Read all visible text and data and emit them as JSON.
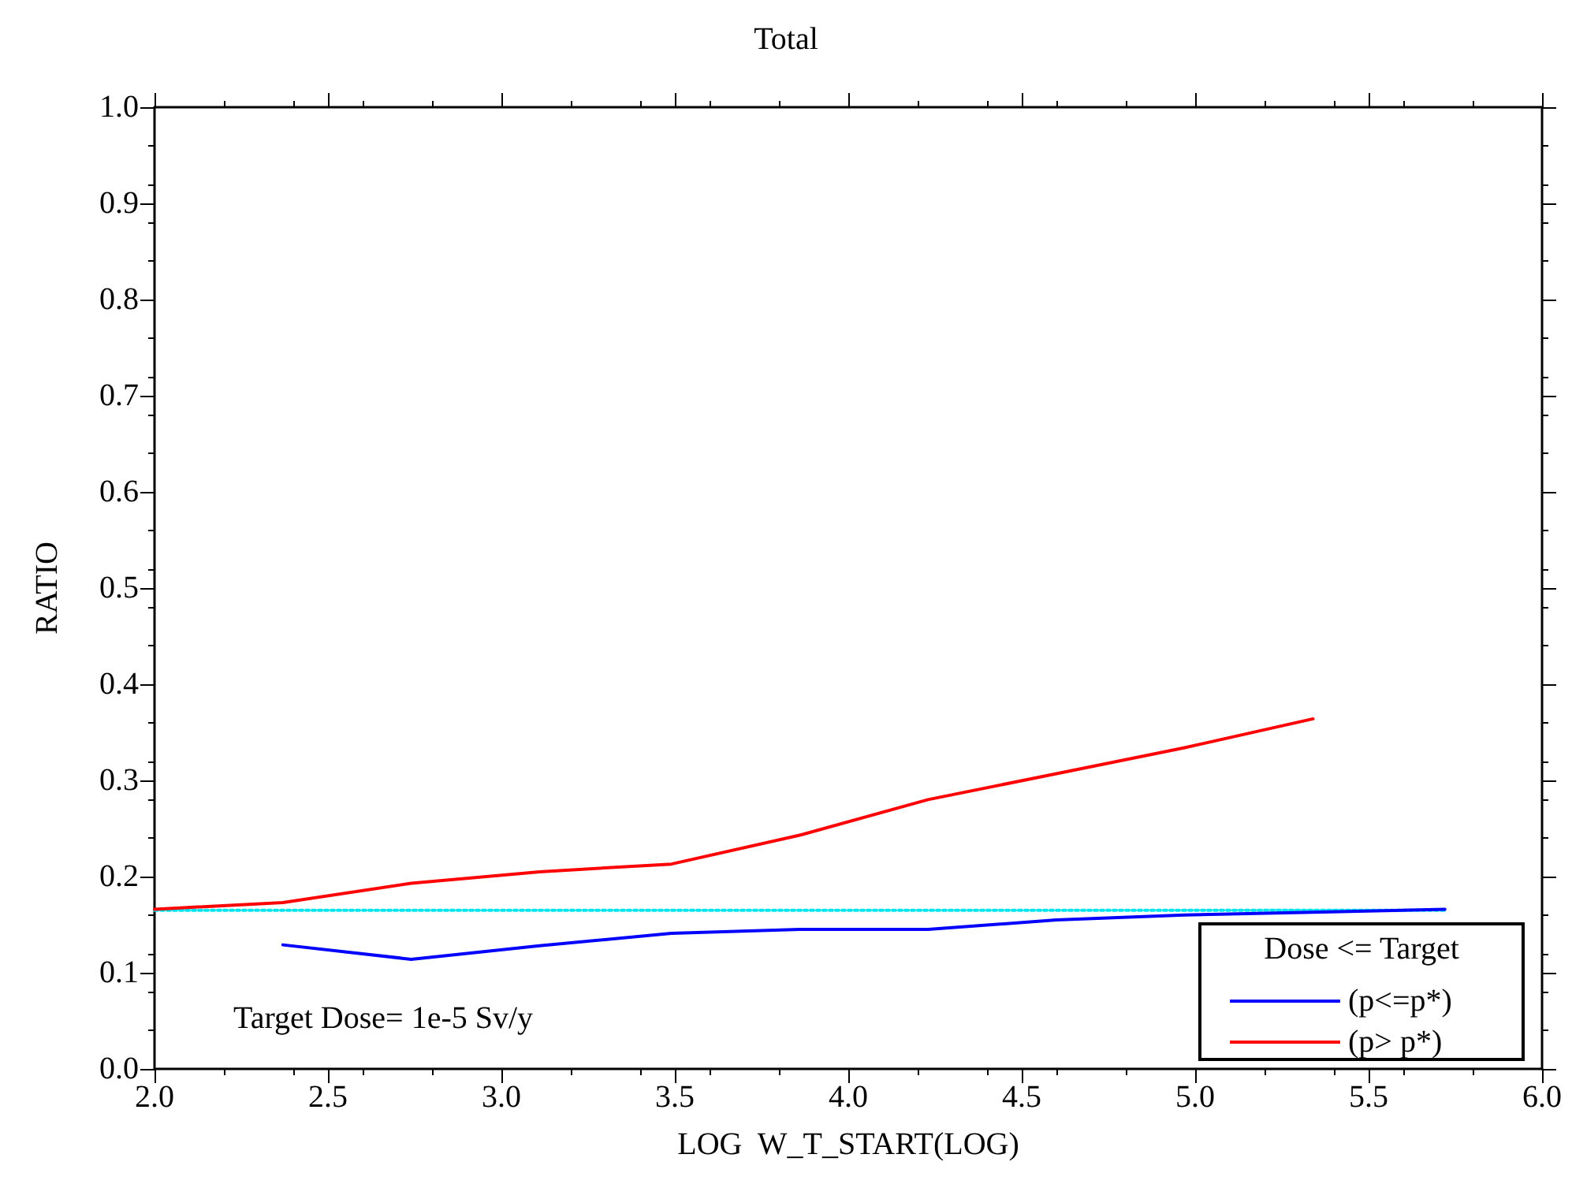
{
  "chart_data": {
    "type": "line",
    "title": "Total",
    "xlabel": "LOG  W_T_START(LOG)",
    "ylabel": "RATIO",
    "legend_title": "Dose <= Target",
    "annotations": [
      "Target Dose= 1e-5 Sv/y"
    ],
    "xlim": [
      2,
      6
    ],
    "xticks": [
      {
        "value": 2,
        "label": "2.0"
      },
      {
        "value": 2.5,
        "label": "2.5"
      },
      {
        "value": 3,
        "label": "3.0"
      },
      {
        "value": 3.5,
        "label": "3.5"
      },
      {
        "value": 4,
        "label": "4.0"
      },
      {
        "value": 4.5,
        "label": "4.5"
      },
      {
        "value": 5,
        "label": "5.0"
      },
      {
        "value": 5.5,
        "label": "5.5"
      },
      {
        "value": 6,
        "label": "6.0"
      }
    ],
    "ylim": [
      0,
      1
    ],
    "yticks": [
      {
        "value": 0,
        "label": "0.0"
      },
      {
        "value": 0.1,
        "label": "0.1"
      },
      {
        "value": 0.2,
        "label": "0.2"
      },
      {
        "value": 0.3,
        "label": "0.3"
      },
      {
        "value": 0.4,
        "label": "0.4"
      },
      {
        "value": 0.5,
        "label": "0.5"
      },
      {
        "value": 0.6,
        "label": "0.6"
      },
      {
        "value": 0.7,
        "label": "0.7"
      },
      {
        "value": 0.8,
        "label": "0.8"
      },
      {
        "value": 0.9,
        "label": "0.9"
      },
      {
        "value": 1,
        "label": "1.0"
      }
    ],
    "grid": false,
    "legend": "bottom right",
    "marker": "none",
    "series": [
      {
        "name": "(p<=p*)",
        "color": "#0000ff",
        "line_style": "solid",
        "x": [
          2.37,
          2.74,
          3.11,
          3.49,
          3.86,
          4.23,
          4.6,
          4.97,
          5.34,
          5.72
        ],
        "values": [
          0.129,
          0.114,
          0.128,
          0.141,
          0.145,
          0.145,
          0.155,
          0.16,
          0.163,
          0.166
        ]
      },
      {
        "name": "(p> p*)",
        "color": "#ff0000",
        "line_style": "solid",
        "x": [
          2.0,
          2.37,
          2.74,
          3.11,
          3.49,
          3.86,
          4.23,
          4.6,
          4.97,
          5.34
        ],
        "values": [
          0.166,
          0.173,
          0.193,
          0.205,
          0.213,
          0.243,
          0.28,
          0.307,
          0.334,
          0.364
        ]
      },
      {
        "color": "#00e5ee",
        "line_style": "dotted",
        "x": [
          2.0,
          5.72
        ],
        "values": [
          0.165,
          0.165
        ]
      }
    ]
  }
}
